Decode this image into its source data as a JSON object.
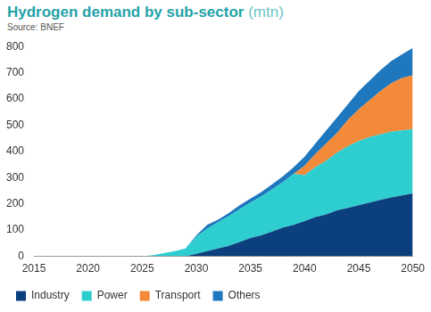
{
  "chart_data": {
    "type": "area",
    "title": "Hydrogen demand by sub-sector",
    "y_label": "(mtn)",
    "subtitle": "Source: BNEF",
    "x": [
      2015,
      2016,
      2017,
      2018,
      2019,
      2020,
      2021,
      2022,
      2023,
      2024,
      2025,
      2026,
      2027,
      2028,
      2029,
      2030,
      2031,
      2032,
      2033,
      2034,
      2035,
      2036,
      2037,
      2038,
      2039,
      2040,
      2041,
      2042,
      2043,
      2044,
      2045,
      2046,
      2047,
      2048,
      2049,
      2050
    ],
    "xlim": [
      2015,
      2050
    ],
    "xticks": [
      2015,
      2020,
      2025,
      2030,
      2035,
      2040,
      2045,
      2050
    ],
    "ylim": [
      0,
      800
    ],
    "yticks": [
      0,
      100,
      200,
      300,
      400,
      500,
      600,
      700,
      800
    ],
    "stacked": true,
    "grid": false,
    "legend": "bottom",
    "series": [
      {
        "name": "Industry",
        "color": "#0b3f7e",
        "values": [
          0,
          0,
          0,
          0,
          0,
          0,
          0,
          0,
          0,
          0,
          0,
          0,
          0,
          0,
          0,
          10,
          20,
          30,
          40,
          55,
          70,
          80,
          95,
          110,
          120,
          135,
          150,
          160,
          175,
          185,
          195,
          205,
          215,
          225,
          232,
          240
        ]
      },
      {
        "name": "Power",
        "color": "#2ecdd0",
        "values": [
          0,
          0,
          0,
          0,
          0,
          0,
          0,
          0,
          0,
          0,
          0,
          5,
          12,
          20,
          30,
          65,
          85,
          100,
          113,
          125,
          135,
          148,
          160,
          173,
          195,
          175,
          190,
          205,
          220,
          235,
          245,
          250,
          250,
          250,
          248,
          245
        ]
      },
      {
        "name": "Transport",
        "color": "#f28a3a",
        "values": [
          0,
          0,
          0,
          0,
          0,
          0,
          0,
          0,
          0,
          0,
          0,
          0,
          0,
          0,
          0,
          0,
          0,
          0,
          0,
          0,
          0,
          0,
          0,
          0,
          0,
          35,
          50,
          65,
          75,
          100,
          120,
          140,
          165,
          185,
          200,
          205
        ]
      },
      {
        "name": "Others",
        "color": "#1f77be",
        "values": [
          0,
          0,
          0,
          0,
          0,
          0,
          0,
          0,
          0,
          0,
          0,
          0,
          0,
          0,
          0,
          5,
          15,
          10,
          12,
          15,
          15,
          17,
          20,
          22,
          25,
          35,
          40,
          50,
          60,
          60,
          70,
          75,
          80,
          85,
          90,
          105
        ]
      }
    ]
  }
}
